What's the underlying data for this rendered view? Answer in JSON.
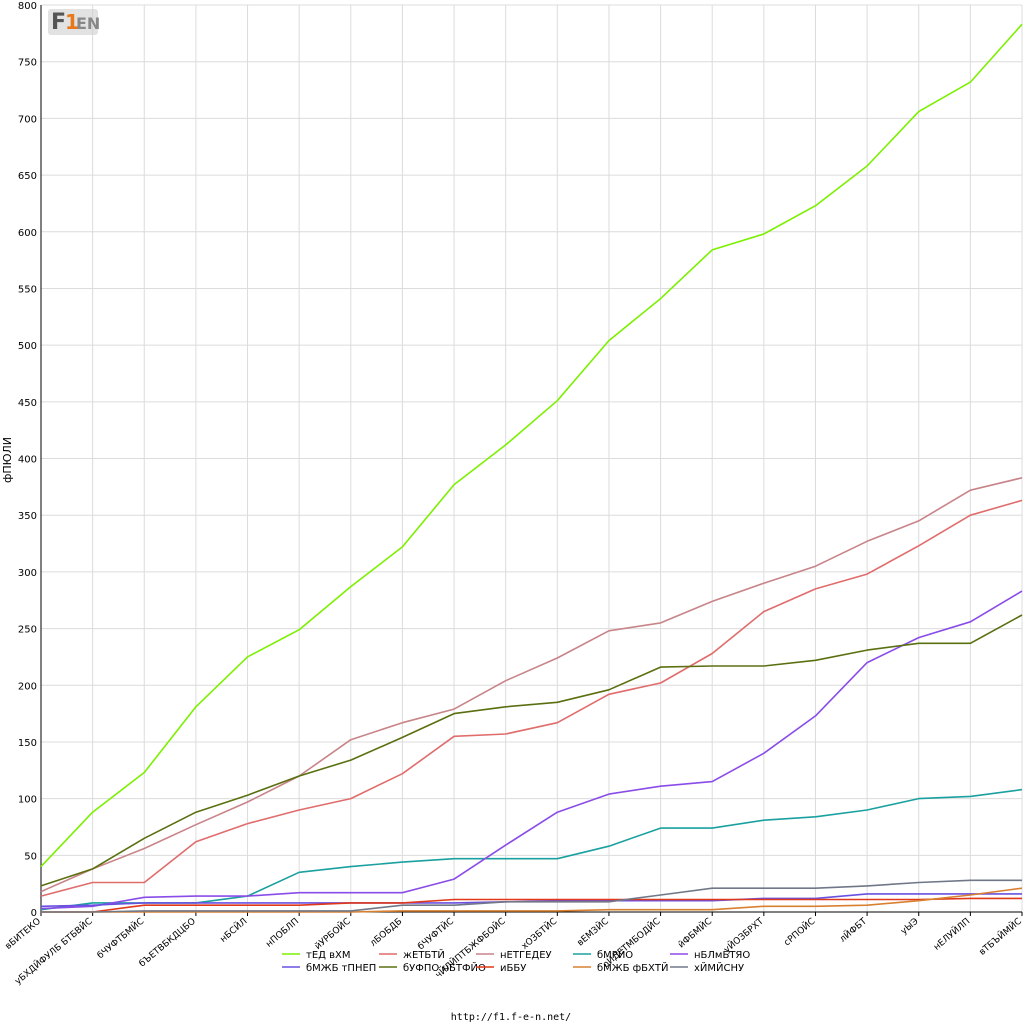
{
  "logo": {
    "text": "F1EN"
  },
  "footer": {
    "url": "http://f1.f-e-n.net/"
  },
  "chart_data": {
    "type": "line",
    "ylabel": "фПЮЛИ",
    "xlabel": "",
    "ylim": [
      0,
      800
    ],
    "yticks": [
      0,
      50,
      100,
      150,
      200,
      250,
      300,
      350,
      400,
      450,
      500,
      550,
      600,
      650,
      700,
      750,
      800
    ],
    "grid": true,
    "legend_position": "bottom",
    "categories": [
      "вБИТЕКО",
      "уБХДЙФУЛБ БТБВЙС",
      "бЧУФТБМЙС",
      "бЪЕТВБКДЦБО",
      "нБСЙЛ",
      "нПОБЛП",
      "йУРБОЙС",
      "лБОБДБ",
      "бЧУФТЙС",
      "чЙЛЙПТБЖФБОЙС",
      "хОЗБТЙС",
      "вЕМЗЙС",
      "оЙДЕТМБОДЙС",
      "йФБМЙС",
      "уЙОЗБРХТ",
      "сРПОЙС",
      "лЙФБТ",
      "уЫЭ",
      "нЕЛУЙЛП",
      "вТБЪЙМЙС"
    ],
    "series": [
      {
        "name": "тЕД вХМ",
        "color": "#7cf000",
        "values": [
          40,
          88,
          123,
          181,
          225,
          249,
          287,
          322,
          377,
          412,
          451,
          504,
          541,
          584,
          598,
          623,
          658,
          706,
          732,
          783
        ]
      },
      {
        "name": "жЕТБТЙ",
        "color": "#e06c6c",
        "values": [
          14,
          26,
          26,
          62,
          78,
          90,
          100,
          122,
          155,
          157,
          167,
          192,
          202,
          228,
          265,
          285,
          298,
          323,
          350,
          363
        ]
      },
      {
        "name": "нЕТГЕДЕУ",
        "color": "#c88488",
        "values": [
          18,
          38,
          56,
          77,
          97,
          120,
          152,
          167,
          179,
          204,
          224,
          248,
          255,
          274,
          290,
          305,
          327,
          345,
          372,
          383
        ]
      },
      {
        "name": "бМРЙО",
        "color": "#1aa0a0",
        "values": [
          2,
          8,
          8,
          8,
          14,
          35,
          40,
          44,
          47,
          47,
          47,
          58,
          74,
          74,
          81,
          84,
          90,
          100,
          102,
          108
        ]
      },
      {
        "name": "нБЛмБТЯО",
        "color": "#8a4ce8",
        "values": [
          3,
          5,
          13,
          14,
          14,
          17,
          17,
          17,
          29,
          59,
          88,
          104,
          111,
          115,
          140,
          173,
          220,
          242,
          256,
          283
        ]
      },
      {
        "name": "бМЖБ тПНЕП",
        "color": "#6a50e0",
        "values": [
          5,
          6,
          8,
          8,
          8,
          8,
          8,
          8,
          8,
          9,
          10,
          10,
          10,
          10,
          12,
          12,
          16,
          16,
          16,
          16
        ]
      },
      {
        "name": "бУФПО нБТФЙО",
        "color": "#5a7010",
        "values": [
          23,
          38,
          65,
          88,
          103,
          120,
          134,
          154,
          175,
          181,
          185,
          196,
          216,
          217,
          217,
          222,
          231,
          237,
          237,
          262
        ]
      },
      {
        "name": "иББУ",
        "color": "#e03818",
        "values": [
          0,
          0,
          6,
          6,
          6,
          6,
          8,
          8,
          11,
          11,
          11,
          11,
          11,
          11,
          11,
          11,
          11,
          11,
          12,
          12
        ]
      },
      {
        "name": "бМЖБ фБХТЙ",
        "color": "#d88030",
        "values": [
          0,
          0,
          0,
          0,
          0,
          0,
          0,
          1,
          1,
          1,
          1,
          2,
          2,
          2,
          5,
          5,
          6,
          10,
          15,
          21
        ]
      },
      {
        "name": "хЙМЙСНУ",
        "color": "#707888",
        "values": [
          0,
          0,
          1,
          1,
          1,
          1,
          1,
          6,
          6,
          9,
          9,
          9,
          15,
          21,
          21,
          21,
          23,
          26,
          28,
          28
        ]
      }
    ]
  }
}
